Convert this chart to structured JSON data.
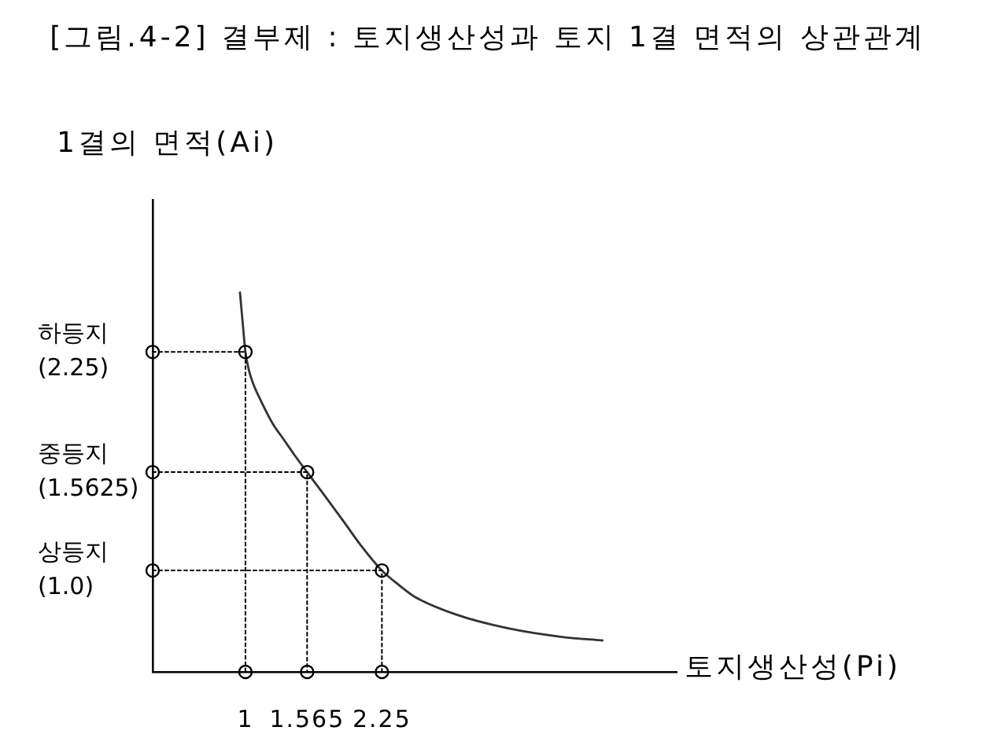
{
  "chart_data": {
    "type": "line",
    "title": "[그림.4-2] 결부제 : 토지생산성과 토지 1결 면적의 상관관계",
    "xlabel": "토지생산성(Pi)",
    "ylabel": "1결의 면적(Ai)",
    "xlim": [
      0.15,
      4.95
    ],
    "ylim": [
      0.42,
      3.12
    ],
    "xticks": [
      1,
      1.565,
      2.25
    ],
    "yticks": [
      {
        "value": 2.25,
        "label": "하등지\n(2.25)"
      },
      {
        "value": 1.5625,
        "label": "중등지\n(1.5625)"
      },
      {
        "value": 1,
        "label": "상등지\n(1.0)"
      }
    ],
    "series": [
      {
        "color": "#333333",
        "marker": "none",
        "line_style": "solid",
        "x": [
          0.95,
          0.98,
          1,
          1.03,
          1.07,
          1.15,
          1.25,
          1.35,
          1.45,
          1.565,
          1.7,
          1.9,
          2.05,
          2.25,
          2.4,
          2.55,
          2.92,
          3.4,
          3.9,
          4.27
        ],
        "values": [
          2.59,
          2.38,
          2.25,
          2.15,
          2.07,
          1.96,
          1.84,
          1.75,
          1.66,
          1.5625,
          1.45,
          1.28,
          1.15,
          1,
          0.92,
          0.85,
          0.75,
          0.67,
          0.62,
          0.6
        ]
      },
      {
        "color": "#000000",
        "marker": "circle",
        "line_style": "dotted",
        "x": [
          0.15,
          1,
          1
        ],
        "values": [
          2.25,
          2.25,
          0.42
        ]
      },
      {
        "color": "#000000",
        "marker": "circle",
        "line_style": "dotted",
        "x": [
          0.15,
          1.565,
          1.565
        ],
        "values": [
          1.5625,
          1.5625,
          0.42
        ]
      },
      {
        "color": "#000000",
        "marker": "circle",
        "line_style": "dotted",
        "x": [
          0.15,
          2.25,
          2.25
        ],
        "values": [
          1,
          1,
          0.42
        ]
      }
    ]
  }
}
